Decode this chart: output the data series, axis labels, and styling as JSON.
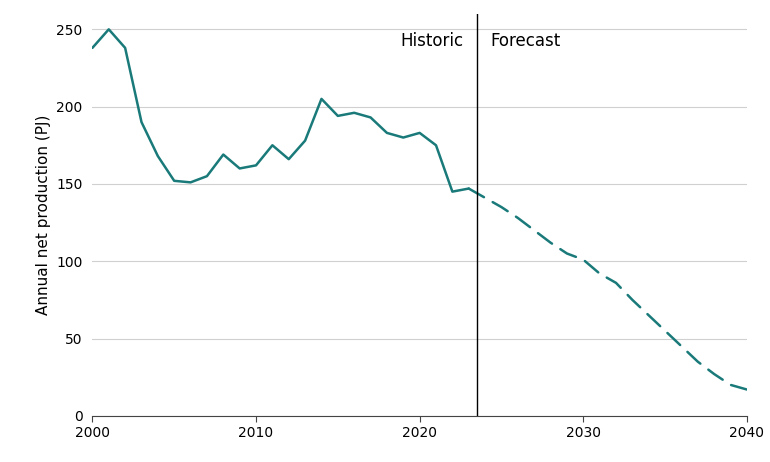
{
  "historic_years": [
    2000,
    2001,
    2002,
    2003,
    2004,
    2005,
    2006,
    2007,
    2008,
    2009,
    2010,
    2011,
    2012,
    2013,
    2014,
    2015,
    2016,
    2017,
    2018,
    2019,
    2020,
    2021,
    2022,
    2023
  ],
  "historic_values": [
    238,
    250,
    238,
    190,
    168,
    152,
    151,
    155,
    169,
    160,
    162,
    175,
    166,
    178,
    205,
    194,
    196,
    193,
    183,
    180,
    183,
    175,
    145,
    147
  ],
  "forecast_years": [
    2023,
    2024,
    2025,
    2026,
    2027,
    2028,
    2029,
    2030,
    2031,
    2032,
    2033,
    2034,
    2035,
    2036,
    2037,
    2038,
    2039,
    2040
  ],
  "forecast_values": [
    147,
    141,
    135,
    128,
    120,
    112,
    105,
    101,
    92,
    86,
    75,
    65,
    55,
    45,
    35,
    27,
    20,
    17
  ],
  "line_color": "#1a7a7a",
  "divider_x": 2023.5,
  "ylabel": "Annual net production (PJ)",
  "ylim": [
    0,
    260
  ],
  "xlim": [
    2000,
    2040
  ],
  "yticks": [
    0,
    50,
    100,
    150,
    200,
    250
  ],
  "xticks": [
    2000,
    2010,
    2020,
    2030,
    2040
  ],
  "historic_label": "Historic",
  "forecast_label": "Forecast",
  "background_color": "#ffffff",
  "grid_color": "#d0d0d0",
  "line_width": 1.8
}
